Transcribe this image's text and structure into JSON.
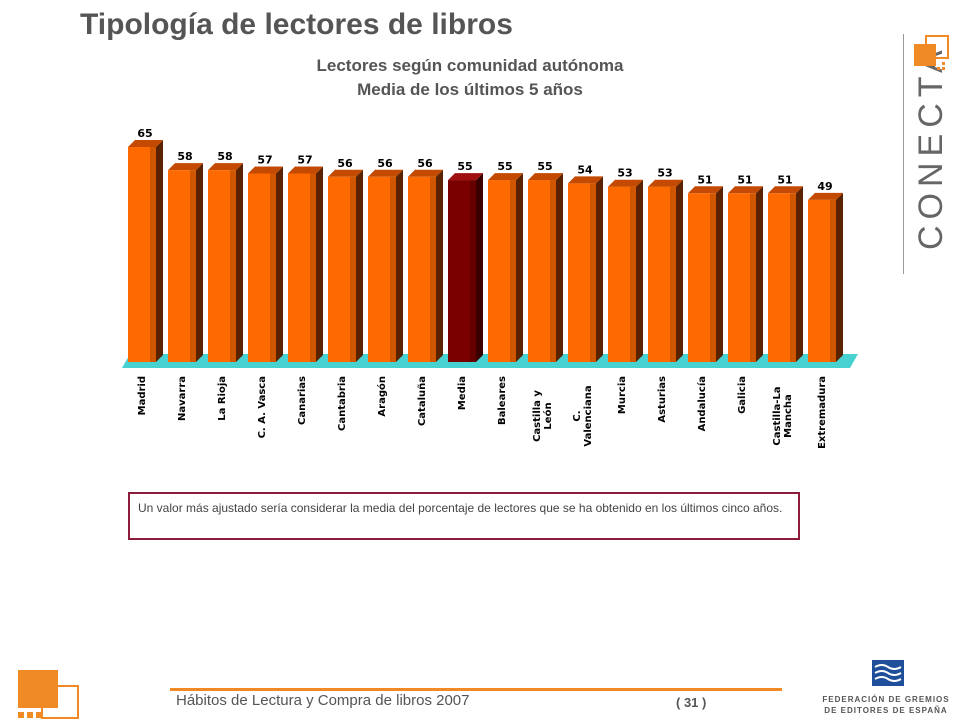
{
  "page": {
    "title": "Tipología de lectores de libros"
  },
  "footer": {
    "text": "Hábitos de Lectura y Compra de libros 2007",
    "page_number": "( 31 )",
    "org_line1": "FEDERACIÓN DE GREMIOS",
    "org_line2": "DE EDITORES DE ESPAÑA"
  },
  "brand": {
    "name": "CONECTA"
  },
  "note": "Un valor más ajustado sería considerar la media del porcentaje de lectores que se ha obtenido en los últimos cinco años.",
  "colors": {
    "bar": "#ff6a00",
    "bar_highlight": "#7a0000",
    "floor": "#48d1d1",
    "accent": "#f08a24",
    "note_border": "#8b1c3c"
  },
  "chart_data": {
    "type": "bar",
    "title": "Lectores según comunidad autónoma",
    "subtitle": "Media de los últimos 5 años",
    "categories": [
      "Madrid",
      "Navarra",
      "La Rioja",
      "C. A. Vasca",
      "Canarias",
      "Cantabria",
      "Aragón",
      "Cataluña",
      "Media",
      "Baleares",
      "Castilla y León",
      "C. Valenciana",
      "Murcia",
      "Asturias",
      "Andalucía",
      "Galicia",
      "Castilla-La Mancha",
      "Extremadura"
    ],
    "values": [
      65,
      58,
      58,
      57,
      57,
      56,
      56,
      56,
      55,
      55,
      55,
      54,
      53,
      53,
      51,
      51,
      51,
      49
    ],
    "highlight": "Media",
    "ylim": [
      0,
      65
    ],
    "grid": false,
    "legend": "none",
    "three_d": true
  }
}
